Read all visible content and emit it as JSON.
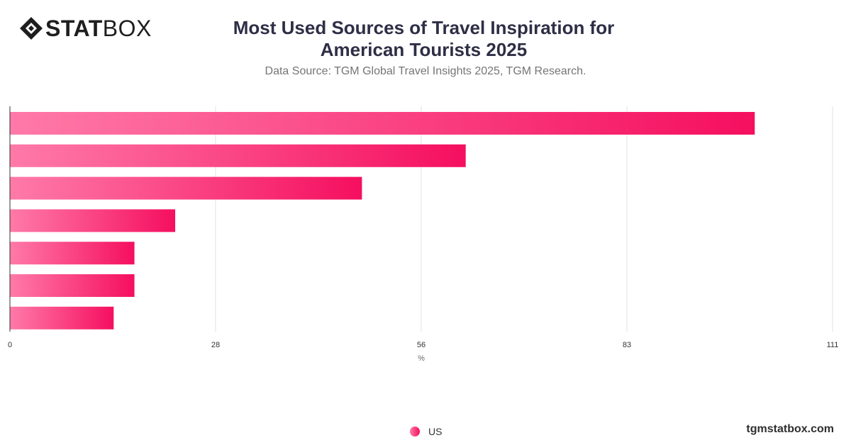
{
  "brand": {
    "logo_bold": "STAT",
    "logo_light": "BOX",
    "footer": "tgmstatbox.com"
  },
  "colors": {
    "bar_start": "#ff7aa8",
    "bar_end": "#f50f5f",
    "grid": "#e2e2e2",
    "axis": "#333333"
  },
  "chart_data": {
    "type": "bar",
    "orientation": "horizontal",
    "title": "Most Used Sources of Travel Inspiration for American Tourists 2025",
    "subtitle": "Data Source: TGM Global Travel Insights 2025, TGM Research.",
    "xlabel": "%",
    "ylabel": "",
    "xlim": [
      0,
      111
    ],
    "x_ticks": [
      "0",
      "28",
      "56",
      "83",
      "111"
    ],
    "grid": true,
    "legend_position": "bottom",
    "categories": [
      "",
      "",
      "",
      "",
      "",
      "",
      ""
    ],
    "series": [
      {
        "name": "US",
        "values": [
          100.5,
          61.5,
          47.5,
          22.3,
          16.8,
          16.8,
          14.0
        ]
      }
    ]
  }
}
